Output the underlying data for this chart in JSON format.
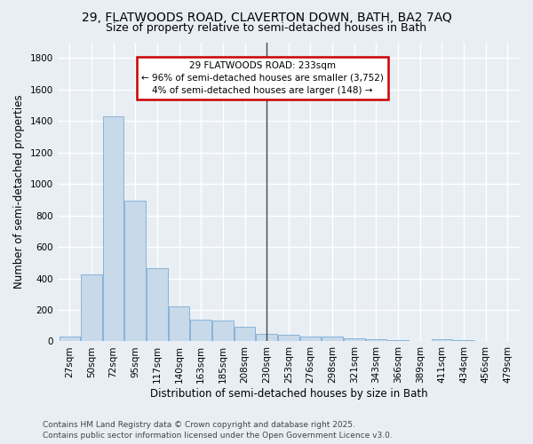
{
  "title_line1": "29, FLATWOODS ROAD, CLAVERTON DOWN, BATH, BA2 7AQ",
  "title_line2": "Size of property relative to semi-detached houses in Bath",
  "xlabel": "Distribution of semi-detached houses by size in Bath",
  "ylabel": "Number of semi-detached properties",
  "footnote_line1": "Contains HM Land Registry data © Crown copyright and database right 2025.",
  "footnote_line2": "Contains public sector information licensed under the Open Government Licence v3.0.",
  "bar_labels": [
    "27sqm",
    "50sqm",
    "72sqm",
    "95sqm",
    "117sqm",
    "140sqm",
    "163sqm",
    "185sqm",
    "208sqm",
    "230sqm",
    "253sqm",
    "276sqm",
    "298sqm",
    "321sqm",
    "343sqm",
    "366sqm",
    "389sqm",
    "411sqm",
    "434sqm",
    "456sqm",
    "479sqm"
  ],
  "bar_values": [
    30,
    425,
    1430,
    895,
    465,
    225,
    140,
    130,
    90,
    50,
    40,
    32,
    28,
    20,
    14,
    10,
    5,
    16,
    8,
    4,
    2
  ],
  "bar_color": "#c8d9ea",
  "bar_edge_color": "#7aacd4",
  "highlight_bar_index": 9,
  "highlight_line_color": "#444444",
  "annotation_text_line1": "29 FLATWOODS ROAD: 233sqm",
  "annotation_text_line2": "← 96% of semi-detached houses are smaller (3,752)",
  "annotation_text_line3": "4% of semi-detached houses are larger (148) →",
  "annotation_box_color": "white",
  "annotation_box_edge_color": "#cc0000",
  "ylim": [
    0,
    1900
  ],
  "yticks": [
    0,
    200,
    400,
    600,
    800,
    1000,
    1200,
    1400,
    1600,
    1800
  ],
  "background_color": "#e8eef4",
  "grid_color": "white",
  "title_fontsize": 10,
  "subtitle_fontsize": 9,
  "axis_label_fontsize": 8.5,
  "tick_fontsize": 7.5,
  "footnote_fontsize": 6.5
}
